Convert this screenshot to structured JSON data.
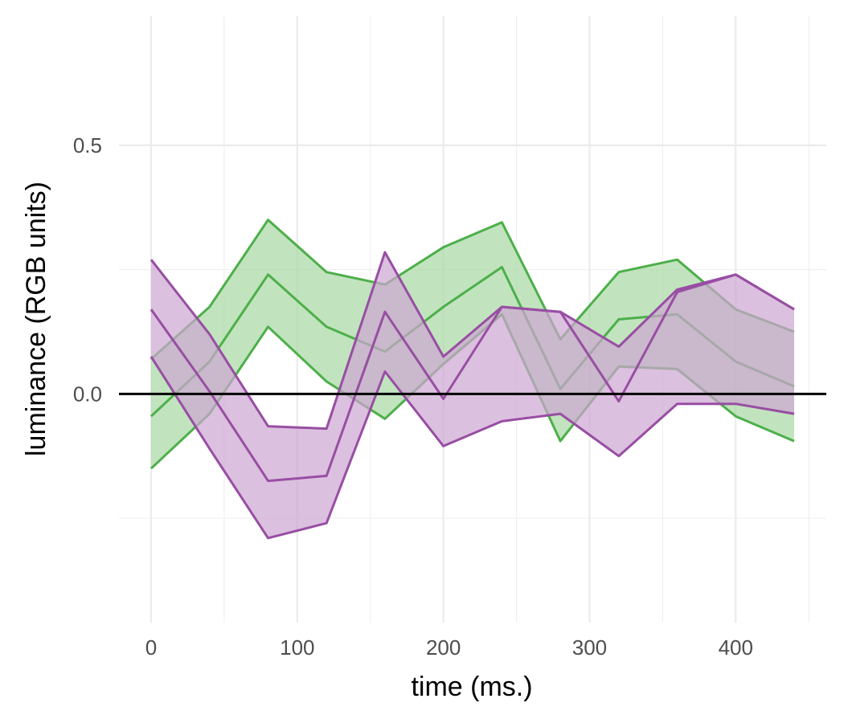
{
  "chart_data": {
    "type": "area",
    "xlabel": "time (ms.)",
    "ylabel": "luminance (RGB units)",
    "xlim": [
      -22,
      462
    ],
    "ylim": [
      -0.46,
      0.76
    ],
    "x_ticks": [
      0,
      100,
      200,
      300,
      400
    ],
    "x_tick_labels": [
      "0",
      "100",
      "200",
      "300",
      "400"
    ],
    "y_ticks": [
      0.0,
      0.5
    ],
    "y_tick_labels": [
      "0.0",
      "0.5"
    ],
    "y_minor_grid": [
      -0.25,
      0.25
    ],
    "x_minor_grid": [
      50,
      150,
      250,
      350,
      450
    ],
    "grid": true,
    "reference_line": {
      "y": 0,
      "color": "#000000"
    },
    "x": [
      0,
      40,
      80,
      120,
      160,
      200,
      240,
      280,
      320,
      360,
      400,
      440
    ],
    "series": [
      {
        "color": "#4DAF4A",
        "fill": "#A6D8A2",
        "mean": [
          -0.045,
          0.065,
          0.24,
          0.135,
          0.085,
          0.175,
          0.255,
          0.01,
          0.15,
          0.16,
          0.065,
          0.015
        ],
        "upper": [
          0.07,
          0.175,
          0.35,
          0.245,
          0.22,
          0.295,
          0.345,
          0.11,
          0.245,
          0.27,
          0.17,
          0.125
        ],
        "lower": [
          -0.15,
          -0.04,
          0.135,
          0.025,
          -0.05,
          0.06,
          0.16,
          -0.095,
          0.055,
          0.05,
          -0.045,
          -0.095
        ]
      },
      {
        "color": "#984EA3",
        "fill": "#CDA5D2",
        "mean": [
          0.17,
          0.005,
          -0.175,
          -0.165,
          0.165,
          -0.01,
          0.175,
          0.165,
          -0.015,
          0.205,
          0.24,
          0.17
        ],
        "upper": [
          0.27,
          0.12,
          -0.065,
          -0.07,
          0.285,
          0.075,
          0.175,
          0.165,
          0.095,
          0.21,
          0.24,
          0.17
        ],
        "lower": [
          0.075,
          -0.11,
          -0.29,
          -0.26,
          0.045,
          -0.105,
          -0.055,
          -0.04,
          -0.125,
          -0.02,
          -0.02,
          -0.04
        ]
      }
    ]
  }
}
